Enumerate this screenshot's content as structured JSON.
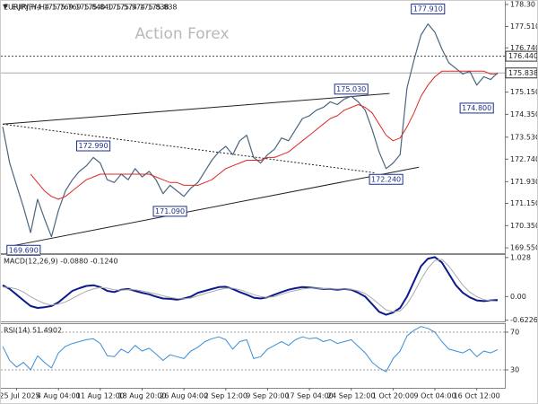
{
  "chart_data": [
    {
      "type": "line",
      "title": "EURJPY,H4  175.769 175.840 175.574 175.838",
      "watermark": "Action Forex",
      "categories": [
        null,
        null,
        "25 Jul 2025",
        null,
        null,
        null,
        null,
        null,
        "4 Aug 04:00",
        null,
        null,
        null,
        null,
        null,
        "11 Aug 12:00",
        null,
        null,
        null,
        null,
        null,
        "18 Aug 20:00",
        null,
        null,
        null,
        null,
        null,
        "26 Aug 04:00",
        null,
        null,
        null,
        null,
        null,
        "2 Sep 12:00",
        null,
        null,
        null,
        null,
        null,
        "9 Sep 20:00",
        null,
        null,
        null,
        null,
        null,
        "17 Sep 04:00",
        null,
        null,
        null,
        null,
        null,
        "24 Sep 12:00",
        null,
        null,
        null,
        null,
        null,
        "1 Oct 20:00",
        null,
        null,
        null,
        null,
        null,
        "9 Oct 04:00",
        null,
        null,
        null,
        null,
        null,
        "16 Oct 12:00",
        null,
        null,
        null
      ],
      "series": [
        {
          "name": "EURJPY",
          "color": "#4a6680",
          "width": 1.2,
          "values": [
            173.9,
            172.6,
            171.8,
            171.0,
            170.1,
            171.3,
            170.6,
            169.95,
            170.9,
            171.6,
            172.0,
            172.3,
            172.5,
            172.8,
            172.6,
            172.0,
            171.9,
            172.2,
            172.0,
            172.4,
            172.1,
            172.3,
            172.0,
            171.5,
            171.8,
            171.6,
            171.4,
            171.7,
            171.9,
            172.3,
            172.7,
            173.0,
            173.2,
            172.9,
            173.4,
            173.6,
            172.8,
            172.6,
            172.9,
            173.1,
            173.5,
            173.4,
            173.8,
            174.2,
            174.3,
            174.5,
            174.6,
            174.8,
            174.7,
            174.9,
            175.0,
            174.8,
            174.5,
            173.8,
            173.0,
            172.4,
            172.6,
            172.9,
            175.3,
            176.3,
            177.2,
            177.6,
            177.3,
            176.7,
            176.2,
            176.0,
            175.8,
            175.9,
            175.4,
            175.7,
            175.6,
            175.84
          ]
        },
        {
          "name": "MA",
          "color": "#e02828",
          "width": 1,
          "values": [
            null,
            null,
            null,
            null,
            172.2,
            171.9,
            171.6,
            171.4,
            171.3,
            171.4,
            171.6,
            171.8,
            172.0,
            172.1,
            172.2,
            172.2,
            172.2,
            172.2,
            172.2,
            172.2,
            172.2,
            172.2,
            172.1,
            172.0,
            171.9,
            171.9,
            171.8,
            171.8,
            171.8,
            171.9,
            172.0,
            172.2,
            172.4,
            172.5,
            172.6,
            172.7,
            172.7,
            172.7,
            172.8,
            172.8,
            172.9,
            173.0,
            173.2,
            173.4,
            173.6,
            173.8,
            174.0,
            174.2,
            174.3,
            174.5,
            174.6,
            174.7,
            174.6,
            174.4,
            174.0,
            173.6,
            173.4,
            173.5,
            173.9,
            174.4,
            175.0,
            175.4,
            175.7,
            175.9,
            175.9,
            175.9,
            175.9,
            175.9,
            175.9,
            175.9,
            175.8,
            175.8
          ]
        }
      ],
      "ylim": [
        169.36,
        178.46
      ],
      "yticks": [
        {
          "value": 178.3,
          "label": "178.30"
        },
        {
          "value": 177.51,
          "label": "177.510"
        },
        {
          "value": 176.74,
          "label": "176.740"
        },
        {
          "value": 175.15,
          "label": "175.150"
        },
        {
          "value": 174.35,
          "label": "174.350"
        },
        {
          "value": 173.53,
          "label": "173.530"
        },
        {
          "value": 172.74,
          "label": "172.740"
        },
        {
          "value": 171.93,
          "label": "171.930"
        },
        {
          "value": 171.15,
          "label": "171.150"
        },
        {
          "value": 170.35,
          "label": "170.350"
        },
        {
          "value": 169.55,
          "label": "169.550"
        }
      ],
      "grid": false,
      "hlines": [
        {
          "value": 176.44,
          "label": "176.440",
          "style": "dotted"
        },
        {
          "value": 175.838,
          "label": "175.838",
          "style": "solid"
        }
      ],
      "trendlines": [
        {
          "x": [
            0,
            55.5
          ],
          "y": [
            174.0,
            175.1
          ],
          "style": "solid"
        },
        {
          "x": [
            0,
            53.3
          ],
          "y": [
            174.0,
            172.25
          ],
          "style": "dotted"
        },
        {
          "x": [
            0.9,
            59.7
          ],
          "y": [
            169.6,
            172.45
          ],
          "style": "solid"
        }
      ],
      "annotations": [
        {
          "x": 61,
          "value": 177.91,
          "label": "177.910"
        },
        {
          "x": 50,
          "value": 175.03,
          "label": "175.030"
        },
        {
          "x": 13,
          "value": 172.99,
          "label": "172.990"
        },
        {
          "x": 24,
          "value": 171.09,
          "label": "171.090"
        },
        {
          "x": 55,
          "value": 172.24,
          "label": "172.240"
        },
        {
          "x": 68,
          "value": 174.8,
          "label": "174.800"
        },
        {
          "x": 3,
          "value": 169.69,
          "label": "169.690"
        }
      ]
    },
    {
      "type": "line",
      "title": "MACD(12,26,9) -0.0880 -0.1240",
      "series": [
        {
          "name": "MACD",
          "color": "#0c1a8c",
          "width": 2,
          "values": [
            0.3,
            0.2,
            0.05,
            -0.1,
            -0.25,
            -0.3,
            -0.28,
            -0.25,
            -0.15,
            0.0,
            0.15,
            0.22,
            0.28,
            0.3,
            0.25,
            0.15,
            0.12,
            0.18,
            0.2,
            0.15,
            0.1,
            0.06,
            0.0,
            -0.05,
            -0.06,
            -0.08,
            -0.05,
            0.0,
            0.1,
            0.15,
            0.2,
            0.25,
            0.26,
            0.2,
            0.12,
            0.05,
            -0.03,
            -0.05,
            -0.02,
            0.05,
            0.12,
            0.18,
            0.22,
            0.25,
            0.24,
            0.22,
            0.2,
            0.2,
            0.18,
            0.2,
            0.18,
            0.1,
            0.0,
            -0.2,
            -0.4,
            -0.48,
            -0.42,
            -0.3,
            0.0,
            0.4,
            0.8,
            1.0,
            1.04,
            0.9,
            0.6,
            0.3,
            0.1,
            -0.02,
            -0.1,
            -0.12,
            -0.1,
            -0.088
          ]
        },
        {
          "name": "Signal",
          "color": "#aaaaaa",
          "width": 1,
          "values": [
            0.25,
            0.24,
            0.2,
            0.12,
            0.0,
            -0.1,
            -0.18,
            -0.22,
            -0.2,
            -0.14,
            -0.05,
            0.05,
            0.14,
            0.2,
            0.24,
            0.22,
            0.18,
            0.17,
            0.18,
            0.18,
            0.15,
            0.11,
            0.07,
            0.02,
            -0.02,
            -0.05,
            -0.06,
            -0.04,
            0.02,
            0.08,
            0.13,
            0.18,
            0.22,
            0.22,
            0.18,
            0.12,
            0.05,
            0.0,
            -0.02,
            0.0,
            0.06,
            0.12,
            0.16,
            0.2,
            0.22,
            0.22,
            0.21,
            0.2,
            0.2,
            0.2,
            0.19,
            0.15,
            0.08,
            -0.05,
            -0.2,
            -0.35,
            -0.4,
            -0.38,
            -0.2,
            0.1,
            0.45,
            0.75,
            0.95,
            0.98,
            0.8,
            0.55,
            0.3,
            0.12,
            0.0,
            -0.08,
            -0.11,
            -0.124
          ]
        }
      ],
      "ylim": [
        -0.654,
        1.12
      ],
      "yticks": [
        1.028,
        {
          "value": 0,
          "label": "0.00"
        },
        -0.6226
      ],
      "grid": false
    },
    {
      "type": "line",
      "title": "RSI(14) 51.4902",
      "series": [
        {
          "name": "RSI",
          "color": "#3a8fd6",
          "width": 1,
          "values": [
            55,
            40,
            33,
            38,
            30,
            45,
            38,
            32,
            48,
            55,
            58,
            60,
            62,
            63,
            58,
            45,
            44,
            52,
            48,
            56,
            50,
            53,
            47,
            40,
            46,
            44,
            42,
            50,
            54,
            60,
            63,
            65,
            62,
            52,
            60,
            62,
            42,
            44,
            52,
            56,
            60,
            56,
            62,
            65,
            63,
            64,
            60,
            62,
            58,
            60,
            62,
            55,
            48,
            38,
            32,
            28,
            42,
            50,
            66,
            72,
            76,
            74,
            70,
            60,
            52,
            50,
            48,
            52,
            44,
            50,
            48,
            51.49
          ]
        }
      ],
      "ylim": [
        11,
        79.5
      ],
      "yticks": [
        70,
        30
      ],
      "grid": true
    }
  ]
}
